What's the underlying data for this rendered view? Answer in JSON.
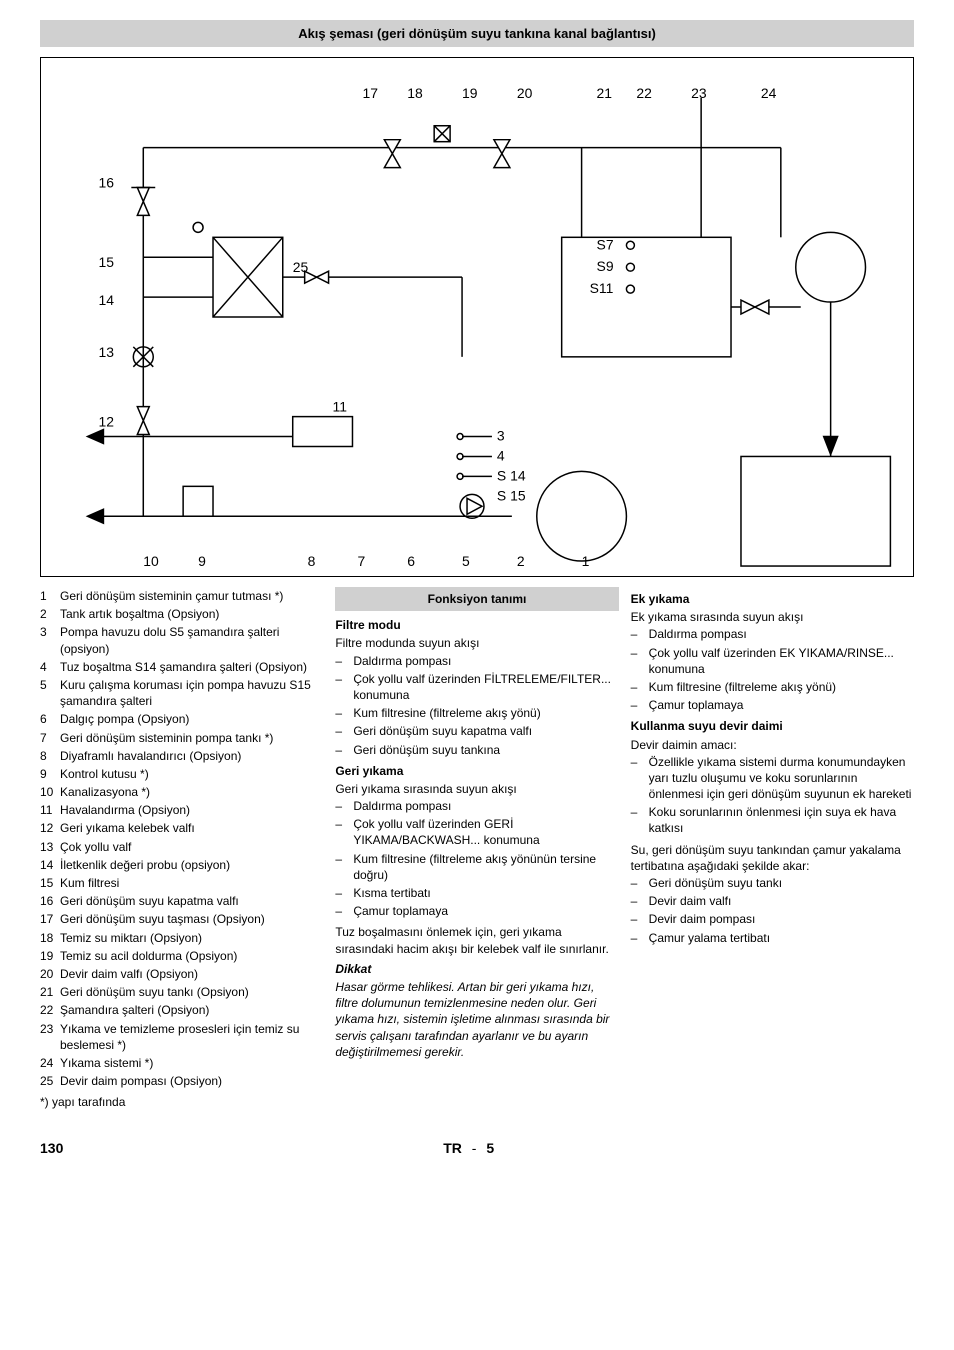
{
  "title": "Akış şeması (geri dönüşüm suyu tankına kanal bağlantısı)",
  "diagram": {
    "top_labels": [
      "17",
      "18",
      "19",
      "20",
      "21",
      "22",
      "23",
      "24"
    ],
    "left_labels": [
      "16",
      "15",
      "14",
      "13",
      "12"
    ],
    "bottom_labels": [
      "10",
      "9",
      "8",
      "7",
      "6",
      "5",
      "2",
      "1"
    ],
    "inner_labels": [
      "25",
      "11",
      "3",
      "4",
      "S7",
      "S9",
      "S11",
      "S 14",
      "S 15"
    ]
  },
  "legend": [
    {
      "n": "1",
      "t": "Geri dönüşüm sisteminin çamur tutması *)"
    },
    {
      "n": "2",
      "t": "Tank artık boşaltma (Opsiyon)"
    },
    {
      "n": "3",
      "t": "Pompa havuzu dolu S5 şamandıra şalteri (opsiyon)"
    },
    {
      "n": "4",
      "t": "Tuz boşaltma S14 şamandıra şalteri (Opsiyon)"
    },
    {
      "n": "5",
      "t": "Kuru çalışma koruması için pompa havuzu S15 şamandıra şalteri"
    },
    {
      "n": "6",
      "t": "Dalgıç pompa (Opsiyon)"
    },
    {
      "n": "7",
      "t": "Geri dönüşüm sisteminin pompa tankı *)"
    },
    {
      "n": "8",
      "t": "Diyaframlı havalandırıcı (Opsiyon)"
    },
    {
      "n": "9",
      "t": "Kontrol kutusu *)"
    },
    {
      "n": "10",
      "t": "Kanalizasyona *)"
    },
    {
      "n": "11",
      "t": "Havalandırma (Opsiyon)"
    },
    {
      "n": "12",
      "t": "Geri yıkama kelebek valfı"
    },
    {
      "n": "13",
      "t": "Çok yollu valf"
    },
    {
      "n": "14",
      "t": "İletkenlik değeri probu (opsiyon)"
    },
    {
      "n": "15",
      "t": "Kum filtresi"
    },
    {
      "n": "16",
      "t": "Geri dönüşüm suyu kapatma valfı"
    },
    {
      "n": "17",
      "t": "Geri dönüşüm suyu taşması (Opsiyon)"
    },
    {
      "n": "18",
      "t": "Temiz su miktarı (Opsiyon)"
    },
    {
      "n": "19",
      "t": "Temiz su acil doldurma (Opsiyon)"
    },
    {
      "n": "20",
      "t": "Devir daim valfı (Opsiyon)"
    },
    {
      "n": "21",
      "t": "Geri dönüşüm suyu tankı (Opsiyon)"
    },
    {
      "n": "22",
      "t": "Şamandıra şalteri (Opsiyon)"
    },
    {
      "n": "23",
      "t": "Yıkama ve temizleme prosesleri için temiz su beslemesi *)"
    },
    {
      "n": "24",
      "t": "Yıkama sistemi *)"
    },
    {
      "n": "25",
      "t": "Devir daim pompası (Opsiyon)"
    }
  ],
  "legend_footnote": "*) yapı tarafında",
  "func_title": "Fonksiyon tanımı",
  "filter": {
    "head": "Filtre modu",
    "intro": "Filtre modunda suyun akışı",
    "items": [
      "Daldırma pompası",
      "Çok yollu valf üzerinden FİLTRELEME/FILTER... konumuna",
      "Kum filtresine (filtreleme akış yönü)",
      "Geri dönüşüm suyu kapatma valfı",
      "Geri dönüşüm suyu tankına"
    ]
  },
  "backwash": {
    "head": "Geri yıkama",
    "intro": "Geri yıkama sırasında suyun akışı",
    "items": [
      "Daldırma pompası",
      "Çok yollu valf üzerinden GERİ YIKAMA/BACKWASH... konumuna",
      "Kum filtresine (filtreleme akış yönünün tersine doğru)",
      "Kısma tertibatı",
      "Çamur toplamaya"
    ],
    "note": "Tuz boşalmasını önlemek için, geri yıkama sırasındaki hacim akışı bir kelebek valf ile sınırlanır."
  },
  "caution": {
    "head": "Dikkat",
    "text": "Hasar görme tehlikesi. Artan bir geri yıkama hızı, filtre dolumunun temizlenmesine neden olur. Geri yıkama hızı, sistemin işletime alınması sırasında bir servis çalışanı tarafından ayarlanır ve bu ayarın değiştirilmemesi gerekir."
  },
  "rinse": {
    "head": "Ek yıkama",
    "intro": "Ek yıkama sırasında suyun akışı",
    "items": [
      "Daldırma pompası",
      "Çok yollu valf üzerinden EK YIKAMA/RINSE... konumuna",
      "Kum filtresine (filtreleme akış yönü)",
      "Çamur toplamaya"
    ]
  },
  "circ": {
    "head": "Kullanma suyu devir daimi",
    "intro": "Devir daimin amacı:",
    "items": [
      "Özellikle yıkama sistemi durma konumundayken yarı tuzlu oluşumu ve koku sorunlarının önlenmesi için geri dönüşüm suyunun ek hareketi",
      "Koku sorunlarının önlenmesi için suya ek hava katkısı"
    ],
    "after": "Su, geri dönüşüm suyu tankından çamur yakalama tertibatına aşağıdaki şekilde akar:",
    "items2": [
      "Geri dönüşüm suyu tankı",
      "Devir daim valfı",
      "Devir daim pompası",
      "Çamur yalama tertibatı"
    ]
  },
  "footer": {
    "page": "130",
    "lang": "TR",
    "sub": "5"
  }
}
